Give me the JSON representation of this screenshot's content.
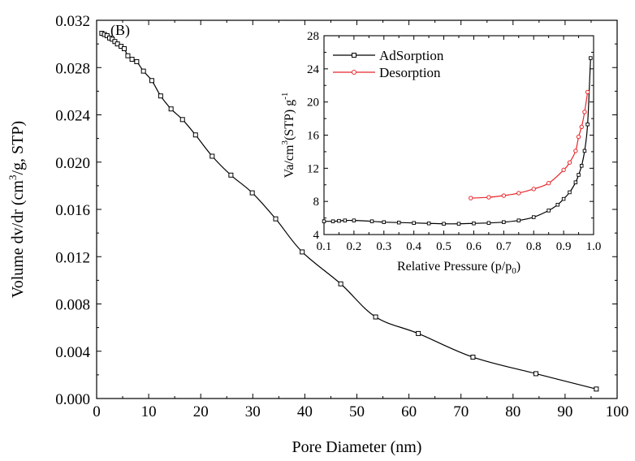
{
  "chart_data": [
    {
      "type": "line",
      "panel_label": "(B)",
      "xlabel": "Pore Diameter (nm)",
      "ylabel_main": "Volume dv/dr (cm",
      "ylabel_sup": "3",
      "ylabel_tail": "/g, STP)",
      "xlim": [
        0,
        100
      ],
      "ylim": [
        0,
        0.032
      ],
      "xticks": [
        "0",
        "10",
        "20",
        "30",
        "40",
        "50",
        "60",
        "70",
        "80",
        "90",
        "100"
      ],
      "yticks": [
        "0.000",
        "0.004",
        "0.008",
        "0.012",
        "0.016",
        "0.020",
        "0.024",
        "0.028",
        "0.032"
      ],
      "series": [
        {
          "marker": "square",
          "color": "#000000",
          "x": [
            1.0,
            1.5,
            2.0,
            2.5,
            3.0,
            3.5,
            4.0,
            4.7,
            5.3,
            6.0,
            6.8,
            7.7,
            9.0,
            10.6,
            12.3,
            14.3,
            16.5,
            19.0,
            22.2,
            25.8,
            29.9,
            34.4,
            39.5,
            46.9,
            53.6,
            61.8,
            72.3,
            84.4,
            96.0
          ],
          "y": [
            0.0309,
            0.0308,
            0.0307,
            0.0305,
            0.0304,
            0.0302,
            0.03,
            0.0298,
            0.0296,
            0.029,
            0.0287,
            0.0285,
            0.0277,
            0.0269,
            0.0256,
            0.0245,
            0.0236,
            0.0223,
            0.0205,
            0.0189,
            0.0174,
            0.0152,
            0.0124,
            0.0097,
            0.0069,
            0.0055,
            0.0035,
            0.0021,
            0.0008
          ]
        }
      ]
    },
    {
      "type": "line",
      "xlabel_main": "Relative Pressure (p/p",
      "xlabel_sub": "0",
      "xlabel_tail": ")",
      "ylabel_main": "Va/cm",
      "ylabel_sup": "3",
      "ylabel_mid": "(STP) g",
      "ylabel_sup2": "-1",
      "xlim": [
        0.1,
        1.0
      ],
      "ylim": [
        4,
        28
      ],
      "xticks": [
        "0.1",
        "0.2",
        "0.3",
        "0.4",
        "0.5",
        "0.6",
        "0.7",
        "0.8",
        "0.9",
        "1.0"
      ],
      "yticks": [
        "4",
        "8",
        "12",
        "16",
        "20",
        "24",
        "28"
      ],
      "legend_position": "top-left",
      "series": [
        {
          "name": "AdSorption",
          "marker": "square",
          "color": "#000000",
          "x": [
            0.1,
            0.13,
            0.15,
            0.17,
            0.2,
            0.26,
            0.3,
            0.35,
            0.4,
            0.45,
            0.5,
            0.55,
            0.6,
            0.65,
            0.7,
            0.75,
            0.8,
            0.85,
            0.88,
            0.9,
            0.92,
            0.94,
            0.95,
            0.96,
            0.97,
            0.98,
            0.99
          ],
          "y": [
            5.6,
            5.6,
            5.65,
            5.7,
            5.7,
            5.6,
            5.5,
            5.45,
            5.4,
            5.35,
            5.3,
            5.3,
            5.35,
            5.4,
            5.5,
            5.7,
            6.1,
            6.9,
            7.6,
            8.3,
            9.1,
            10.3,
            11.2,
            12.3,
            14.1,
            17.3,
            25.3
          ]
        },
        {
          "name": "Desorption",
          "marker": "circle",
          "color": "#e8262a",
          "x": [
            0.59,
            0.65,
            0.7,
            0.75,
            0.8,
            0.85,
            0.9,
            0.92,
            0.94,
            0.95,
            0.96,
            0.97,
            0.98
          ],
          "y": [
            8.4,
            8.5,
            8.7,
            9.0,
            9.5,
            10.2,
            11.8,
            12.7,
            14.1,
            15.8,
            17.0,
            18.8,
            21.2
          ]
        }
      ]
    }
  ]
}
